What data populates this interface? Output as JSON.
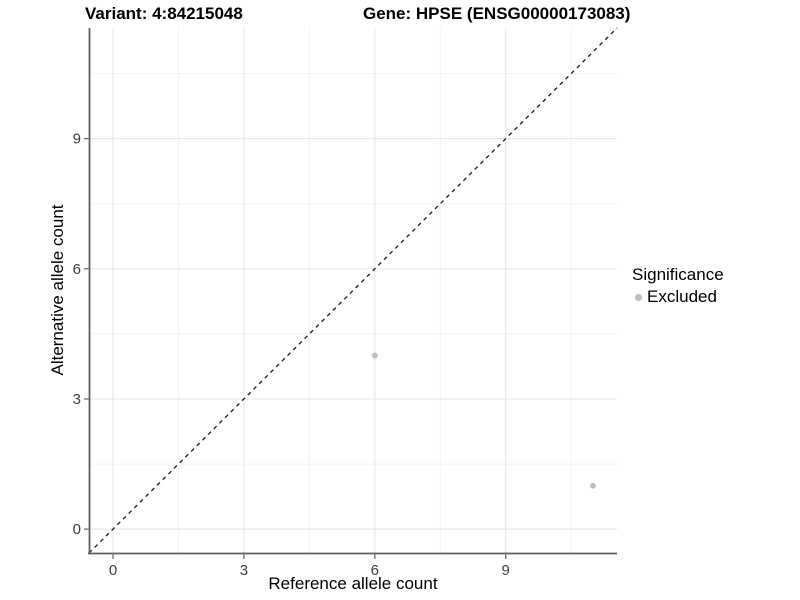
{
  "header": {
    "variant_title": "Variant: 4:84215048",
    "gene_title": "Gene: HPSE (ENSG00000173083)"
  },
  "axes": {
    "x_label": "Reference allele count",
    "y_label": "Alternative allele count"
  },
  "legend": {
    "title": "Significance",
    "items": [
      {
        "label": "Excluded",
        "color": "#bebebe"
      }
    ]
  },
  "colors": {
    "axis_line": "#5f5f5f",
    "tick_mark": "#5f5f5f",
    "tick_label": "#404040",
    "grid_major": "#e9e9e9",
    "grid_minor": "#f2f2f2",
    "reference_line": "#1a1a1a",
    "point": "#bebebe",
    "background": "#ffffff"
  },
  "chart_data": {
    "type": "scatter",
    "title_left": "Variant: 4:84215048",
    "title_right": "Gene: HPSE (ENSG00000173083)",
    "xlabel": "Reference allele count",
    "ylabel": "Alternative allele count",
    "xlim": [
      -0.55,
      11.55
    ],
    "ylim": [
      -0.55,
      11.55
    ],
    "x_ticks": [
      0,
      3,
      6,
      9
    ],
    "y_ticks": [
      0,
      3,
      6,
      9
    ],
    "x_minor_ticks": [
      1.5,
      4.5,
      7.5,
      10.5
    ],
    "y_minor_ticks": [
      1.5,
      4.5,
      7.5,
      10.5
    ],
    "grid": true,
    "legend_position": "right",
    "series": [
      {
        "name": "Excluded",
        "color": "#bebebe",
        "points": [
          {
            "x": 6,
            "y": 4
          },
          {
            "x": 11,
            "y": 1
          }
        ]
      }
    ],
    "reference_line": {
      "kind": "identity",
      "style": "dashed",
      "color": "#1a1a1a"
    }
  }
}
